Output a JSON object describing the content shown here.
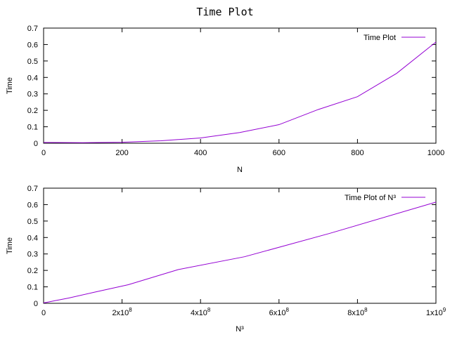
{
  "title": "Time Plot",
  "chart_data": [
    {
      "type": "line",
      "xlabel": "N",
      "ylabel": "Time",
      "xlim": [
        0,
        1000
      ],
      "ylim": [
        0,
        0.7
      ],
      "xticks": [
        {
          "value": 0,
          "label": "0"
        },
        {
          "value": 200,
          "label": "200"
        },
        {
          "value": 400,
          "label": "400"
        },
        {
          "value": 600,
          "label": "600"
        },
        {
          "value": 800,
          "label": "800"
        },
        {
          "value": 1000,
          "label": "1000"
        }
      ],
      "yticks": [
        {
          "value": 0,
          "label": "0"
        },
        {
          "value": 0.1,
          "label": "0.1"
        },
        {
          "value": 0.2,
          "label": "0.2"
        },
        {
          "value": 0.3,
          "label": "0.3"
        },
        {
          "value": 0.4,
          "label": "0.4"
        },
        {
          "value": 0.5,
          "label": "0.5"
        },
        {
          "value": 0.6,
          "label": "0.6"
        },
        {
          "value": 0.7,
          "label": "0.7"
        }
      ],
      "legend": "top-right",
      "grid": false,
      "series": [
        {
          "name": "Time Plot",
          "color": "#9400d3",
          "x": [
            0,
            100,
            200,
            300,
            400,
            500,
            600,
            700,
            800,
            900,
            1000
          ],
          "y": [
            0.005,
            0.003,
            0.006,
            0.015,
            0.032,
            0.065,
            0.113,
            0.205,
            0.283,
            0.425,
            0.615
          ]
        }
      ]
    },
    {
      "type": "line",
      "xlabel": "N³",
      "ylabel": "Time",
      "xlim": [
        0,
        1000000000
      ],
      "ylim": [
        0,
        0.7
      ],
      "xticks": [
        {
          "value": 0,
          "label": "0"
        },
        {
          "value": 200000000,
          "label": "2x10",
          "exp": "8"
        },
        {
          "value": 400000000,
          "label": "4x10",
          "exp": "8"
        },
        {
          "value": 600000000,
          "label": "6x10",
          "exp": "8"
        },
        {
          "value": 800000000,
          "label": "8x10",
          "exp": "8"
        },
        {
          "value": 1000000000,
          "label": "1x10",
          "exp": "9"
        }
      ],
      "yticks": [
        {
          "value": 0,
          "label": "0"
        },
        {
          "value": 0.1,
          "label": "0.1"
        },
        {
          "value": 0.2,
          "label": "0.2"
        },
        {
          "value": 0.3,
          "label": "0.3"
        },
        {
          "value": 0.4,
          "label": "0.4"
        },
        {
          "value": 0.5,
          "label": "0.5"
        },
        {
          "value": 0.6,
          "label": "0.6"
        },
        {
          "value": 0.7,
          "label": "0.7"
        }
      ],
      "legend": "top-right",
      "grid": false,
      "series": [
        {
          "name": "Time Plot of N³",
          "color": "#9400d3",
          "x": [
            0,
            1000000,
            8000000,
            27000000,
            64000000,
            125000000,
            216000000,
            343000000,
            512000000,
            729000000,
            1000000000
          ],
          "y": [
            0.005,
            0.003,
            0.006,
            0.015,
            0.032,
            0.065,
            0.113,
            0.205,
            0.283,
            0.425,
            0.615
          ]
        }
      ]
    }
  ]
}
